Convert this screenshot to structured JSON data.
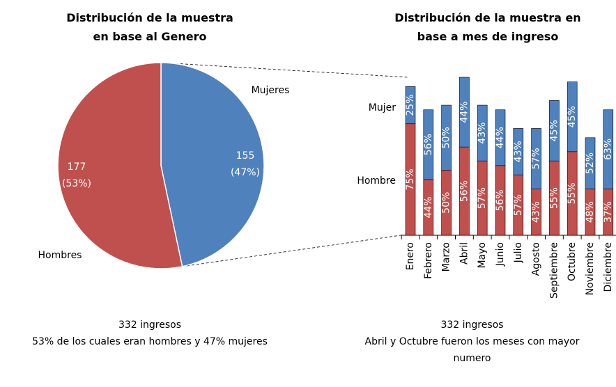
{
  "chart_data": [
    {
      "type": "pie",
      "title": "Distribución de la muestra en base al Genero",
      "categories": [
        "Hombres",
        "Mujeres"
      ],
      "values": [
        177,
        155
      ],
      "value_labels": [
        "177\n(53%)",
        "155\n(47%)"
      ],
      "colors": [
        "#c0504d",
        "#4f81bd"
      ],
      "caption": [
        "332 ingresos",
        "53% de los cuales eran hombres y 47% mujeres"
      ]
    },
    {
      "type": "bar",
      "stacked": true,
      "title": "Distribución de la muestra en base a mes de ingreso",
      "categories": [
        "Enero",
        "Febrero",
        "Marzo",
        "Abril",
        "Mayo",
        "Junio",
        "Julio",
        "Agosto",
        "Septiembre",
        "Octubre",
        "Noviembre",
        "Diciembre"
      ],
      "series": [
        {
          "name": "Hombre",
          "color": "#c0504d",
          "values": [
            24,
            12,
            14,
            19,
            16,
            15,
            13,
            10,
            16,
            18,
            10,
            10
          ],
          "value_labels": [
            "75%",
            "44%",
            "50%",
            "56%",
            "57%",
            "56%",
            "57%",
            "43%",
            "55%",
            "55%",
            "48%",
            "37%"
          ]
        },
        {
          "name": "Mujer",
          "color": "#4f81bd",
          "values": [
            8,
            15,
            14,
            15,
            12,
            12,
            10,
            13,
            13,
            15,
            11,
            17
          ],
          "value_labels": [
            "25%",
            "56%",
            "50%",
            "44%",
            "43%",
            "44%",
            "43%",
            "57%",
            "45%",
            "45%",
            "52%",
            "63%"
          ]
        }
      ],
      "caption": [
        "332 ingresos",
        "Abril y Octubre fueron los meses con mayor numero"
      ]
    }
  ]
}
